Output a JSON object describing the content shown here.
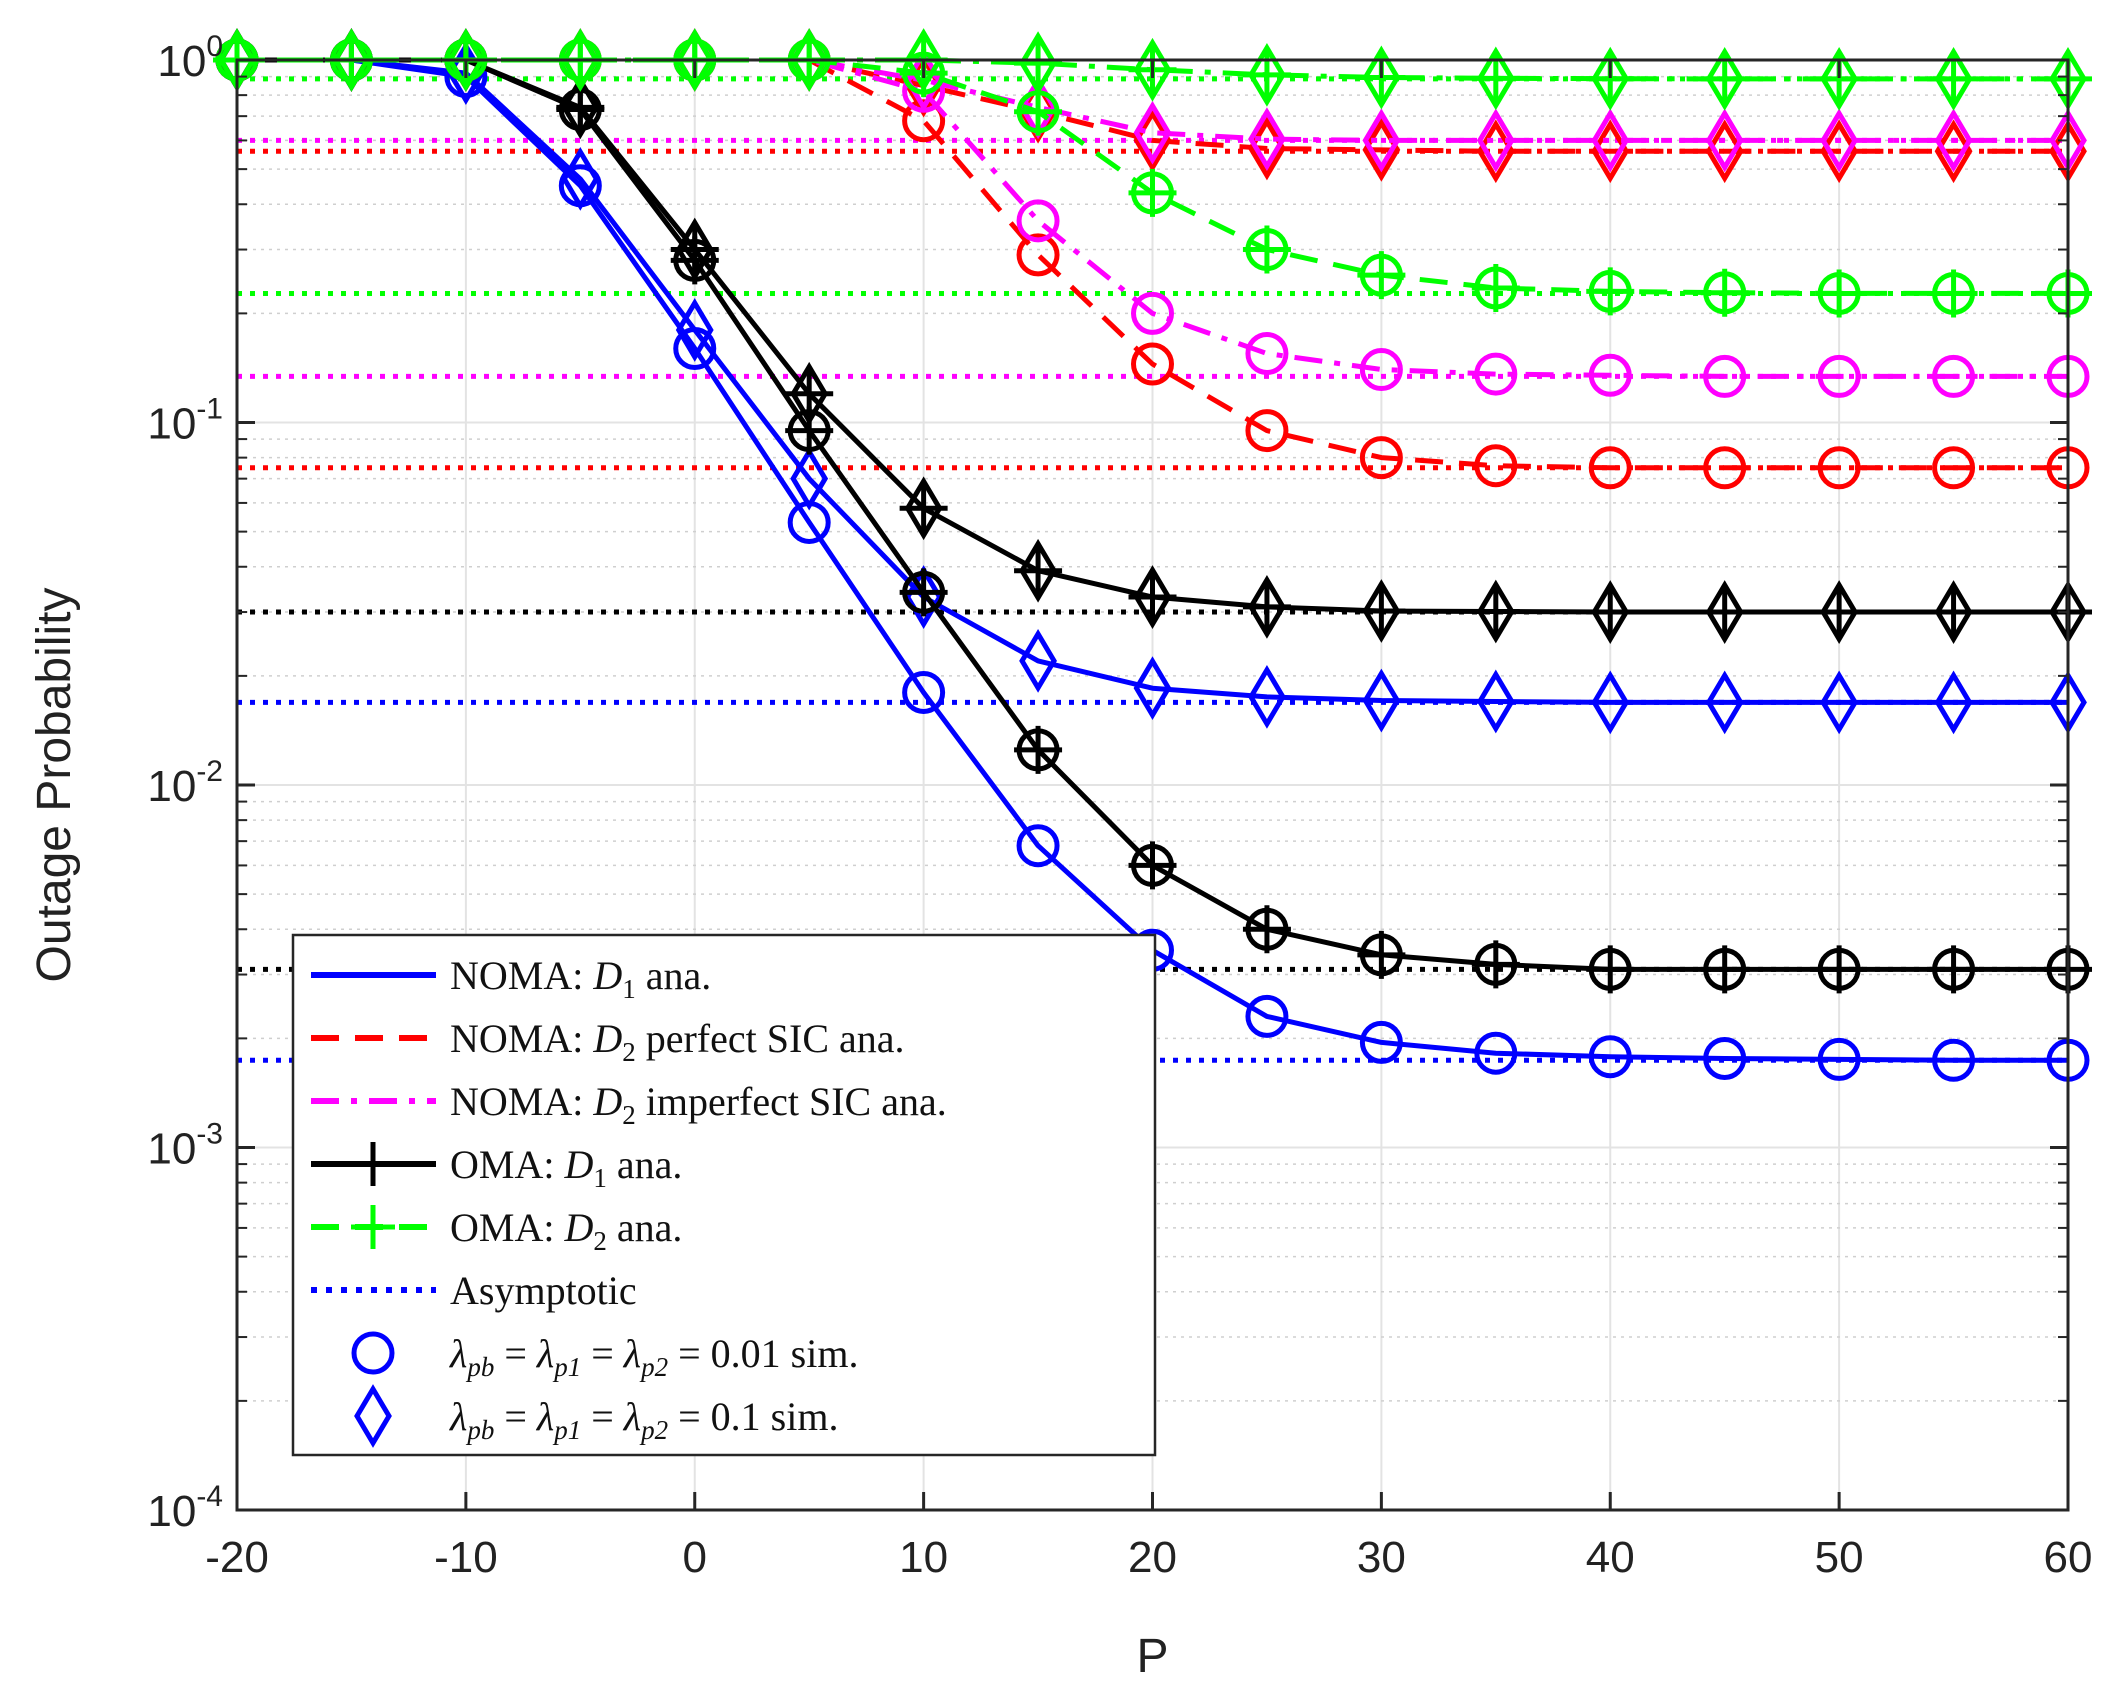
{
  "chart_data": {
    "type": "line",
    "title": "",
    "xlabel": "P",
    "ylabel": "Outage Probability",
    "xlim": [
      -20,
      60
    ],
    "ylim": [
      0.0001,
      1
    ],
    "yscale": "log",
    "grid": true,
    "legend_position": "bottom-left",
    "x_ticks": [
      -20,
      -10,
      0,
      10,
      20,
      30,
      40,
      50,
      60
    ],
    "x_tick_labels": [
      "-20",
      "-10",
      "0",
      "10",
      "20",
      "30",
      "40",
      "50",
      "60"
    ],
    "y_ticks": [
      {
        "value": 1,
        "base": "10",
        "exp": "0"
      },
      {
        "value": 0.1,
        "base": "10",
        "exp": "-1"
      },
      {
        "value": 0.01,
        "base": "10",
        "exp": "-2"
      },
      {
        "value": 0.001,
        "base": "10",
        "exp": "-3"
      },
      {
        "value": 0.0001,
        "base": "10",
        "exp": "-4"
      }
    ],
    "x": [
      -20,
      -15,
      -10,
      -5,
      0,
      5,
      10,
      15,
      20,
      25,
      30,
      35,
      40,
      45,
      50,
      55,
      60
    ],
    "series": [
      {
        "id": "noma-d1-l001",
        "group": "NOMA D1 ana.",
        "color": "#0000ff",
        "dash": "solid",
        "marker": "circle",
        "values": [
          1.0,
          1.0,
          0.9,
          0.45,
          0.16,
          0.053,
          0.018,
          0.0068,
          0.0035,
          0.0023,
          0.00195,
          0.00182,
          0.00178,
          0.00176,
          0.00175,
          0.00174,
          0.00174
        ]
      },
      {
        "id": "noma-d1-l01",
        "group": "NOMA D1 ana.",
        "color": "#0000ff",
        "dash": "solid",
        "marker": "diamond",
        "values": [
          1.0,
          1.0,
          0.92,
          0.47,
          0.18,
          0.07,
          0.033,
          0.022,
          0.0185,
          0.0175,
          0.0171,
          0.017,
          0.0169,
          0.0169,
          0.0169,
          0.0169,
          0.0169
        ]
      },
      {
        "id": "noma-d2-perfect-l001",
        "group": "NOMA D2 perfect SIC ana.",
        "color": "#ff0000",
        "dash": "dash",
        "marker": "circle",
        "values": [
          1.0,
          1.0,
          1.0,
          1.0,
          1.0,
          1.0,
          0.68,
          0.29,
          0.145,
          0.095,
          0.08,
          0.076,
          0.075,
          0.075,
          0.075,
          0.075,
          0.075
        ]
      },
      {
        "id": "noma-d2-perfect-l01",
        "group": "NOMA D2 perfect SIC ana.",
        "color": "#ff0000",
        "dash": "dash",
        "marker": "diamond",
        "values": [
          1.0,
          1.0,
          1.0,
          1.0,
          1.0,
          1.0,
          0.85,
          0.72,
          0.6,
          0.57,
          0.565,
          0.56,
          0.56,
          0.56,
          0.56,
          0.56,
          0.56
        ]
      },
      {
        "id": "noma-d2-imperfect-l001",
        "group": "NOMA D2 imperfect SIC ana.",
        "color": "#ff00ff",
        "dash": "dashdot",
        "marker": "circle",
        "values": [
          1.0,
          1.0,
          1.0,
          1.0,
          1.0,
          1.0,
          0.82,
          0.36,
          0.2,
          0.155,
          0.14,
          0.136,
          0.135,
          0.134,
          0.134,
          0.134,
          0.134
        ]
      },
      {
        "id": "noma-d2-imperfect-l01",
        "group": "NOMA D2 imperfect SIC ana.",
        "color": "#ff00ff",
        "dash": "dashdot",
        "marker": "diamond",
        "values": [
          1.0,
          1.0,
          1.0,
          1.0,
          1.0,
          1.0,
          0.88,
          0.74,
          0.63,
          0.605,
          0.6,
          0.6,
          0.6,
          0.6,
          0.6,
          0.6,
          0.6
        ]
      },
      {
        "id": "oma-d1-l001",
        "group": "OMA D1 ana.",
        "color": "#000000",
        "dash": "solid",
        "marker": "circle-plus",
        "values": [
          1.0,
          1.0,
          1.0,
          0.73,
          0.28,
          0.095,
          0.034,
          0.0125,
          0.006,
          0.004,
          0.0034,
          0.0032,
          0.0031,
          0.0031,
          0.0031,
          0.0031,
          0.0031
        ]
      },
      {
        "id": "oma-d1-l01",
        "group": "OMA D1 ana.",
        "color": "#000000",
        "dash": "solid",
        "marker": "diamond-plus",
        "values": [
          1.0,
          1.0,
          1.0,
          0.74,
          0.3,
          0.12,
          0.058,
          0.039,
          0.033,
          0.031,
          0.0302,
          0.0301,
          0.03,
          0.03,
          0.03,
          0.03,
          0.03
        ]
      },
      {
        "id": "oma-d2-l001",
        "group": "OMA D2 ana.",
        "color": "#00ff00",
        "dash": "dash",
        "marker": "circle-plus",
        "values": [
          1.0,
          1.0,
          1.0,
          1.0,
          1.0,
          1.0,
          0.92,
          0.72,
          0.43,
          0.3,
          0.255,
          0.235,
          0.23,
          0.228,
          0.227,
          0.227,
          0.227
        ]
      },
      {
        "id": "oma-d2-l01",
        "group": "OMA D2 ana.",
        "color": "#00ff00",
        "dash": "dashdot",
        "marker": "diamond-plus",
        "values": [
          1.0,
          1.0,
          1.0,
          1.0,
          1.0,
          1.0,
          1.0,
          0.98,
          0.94,
          0.91,
          0.895,
          0.89,
          0.888,
          0.887,
          0.887,
          0.887,
          0.887
        ]
      }
    ],
    "asymptotes": [
      {
        "id": "asym-green-high",
        "color": "#00ff00",
        "value": 0.887
      },
      {
        "id": "asym-magenta-high",
        "color": "#ff00ff",
        "value": 0.6
      },
      {
        "id": "asym-red-high",
        "color": "#ff0000",
        "value": 0.56
      },
      {
        "id": "asym-green-low",
        "color": "#00ff00",
        "value": 0.227
      },
      {
        "id": "asym-magenta-low",
        "color": "#ff00ff",
        "value": 0.134
      },
      {
        "id": "asym-red-low",
        "color": "#ff0000",
        "value": 0.075
      },
      {
        "id": "asym-black-high",
        "color": "#000000",
        "value": 0.03
      },
      {
        "id": "asym-blue-high",
        "color": "#0000ff",
        "value": 0.0169
      },
      {
        "id": "asym-black-low",
        "color": "#000000",
        "value": 0.0031
      },
      {
        "id": "asym-blue-low",
        "color": "#0000ff",
        "value": 0.00174
      }
    ],
    "legend": [
      {
        "id": "noma-d1",
        "color": "#0000ff",
        "dash": "solid",
        "marker": "none",
        "prefix": "NOMA: ",
        "var": "D",
        "sub": "1",
        "suffix": " ana."
      },
      {
        "id": "noma-d2-perfect",
        "color": "#ff0000",
        "dash": "dash",
        "marker": "none",
        "prefix": "NOMA: ",
        "var": "D",
        "sub": "2",
        "suffix": " perfect SIC ana."
      },
      {
        "id": "noma-d2-imperfect",
        "color": "#ff00ff",
        "dash": "dashdot",
        "marker": "none",
        "prefix": "NOMA: ",
        "var": "D",
        "sub": "2",
        "suffix": " imperfect SIC ana."
      },
      {
        "id": "oma-d1",
        "color": "#000000",
        "dash": "solid",
        "marker": "plus",
        "prefix": "OMA: ",
        "var": "D",
        "sub": "1",
        "suffix": " ana."
      },
      {
        "id": "oma-d2",
        "color": "#00ff00",
        "dash": "dash",
        "marker": "plus",
        "prefix": "OMA: ",
        "var": "D",
        "sub": "2",
        "suffix": " ana."
      },
      {
        "id": "asymptotic",
        "color": "#0000ff",
        "dash": "dot",
        "marker": "none",
        "prefix": "Asymptotic",
        "var": "",
        "sub": "",
        "suffix": ""
      },
      {
        "id": "sim-001",
        "color": "#0000ff",
        "dash": "none",
        "marker": "circle",
        "lambda": true,
        "value_text": "= 0.01 sim."
      },
      {
        "id": "sim-01",
        "color": "#0000ff",
        "dash": "none",
        "marker": "diamond",
        "lambda": true,
        "value_text": "= 0.1 sim."
      }
    ],
    "lambda_parts": {
      "symbol": "λ",
      "subs": [
        "pb",
        "p1",
        "p2"
      ],
      "eq": " = "
    }
  }
}
